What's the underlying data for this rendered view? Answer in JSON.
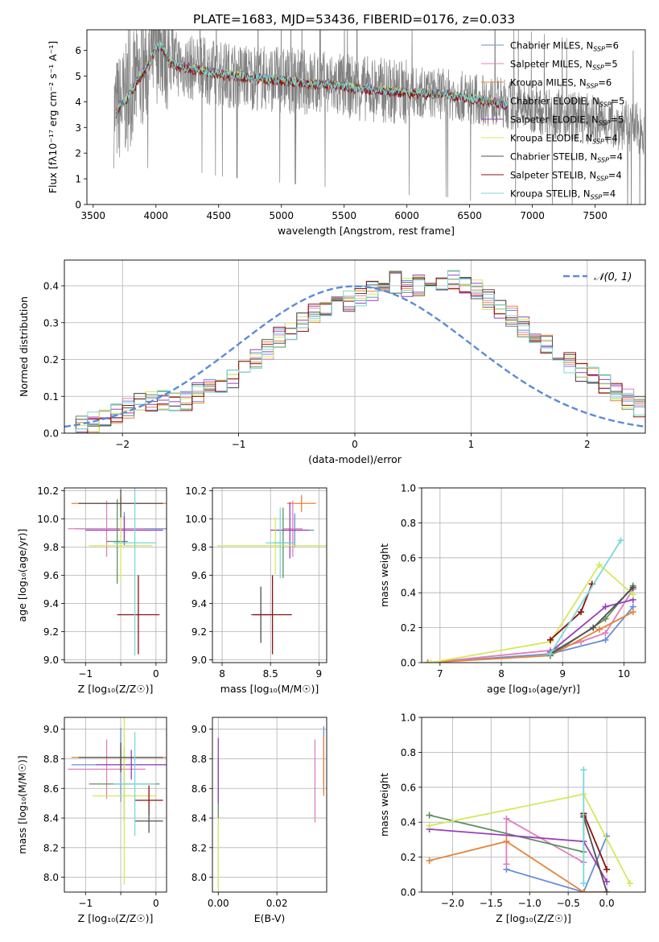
{
  "figure_title": "PLATE=1683, MJD=53436, FIBERID=0176, z=0.033",
  "colors": {
    "Chabrier MILES": "#6a8fd6",
    "Salpeter MILES": "#e07fbf",
    "Kroupa MILES": "#e6843a",
    "Chabrier ELODIE": "#5f8f5f",
    "Salpeter ELODIE": "#9a3fb8",
    "Kroupa ELODIE": "#d4e85a",
    "Chabrier STELIB": "#505050",
    "Salpeter STELIB": "#8b1010",
    "Kroupa STELIB": "#7ad8d8",
    "data": "#808080",
    "normal": "#5b8bd6"
  },
  "chart_data": [
    {
      "type": "line",
      "xlabel": "wavelength [Angstrom, rest frame]",
      "ylabel": "Flux [fλ10⁻¹⁷ erg cm⁻² s⁻¹ A⁻¹]",
      "xlim": [
        3450,
        7900
      ],
      "ylim": [
        0,
        6.8
      ],
      "xticks": [
        3500,
        4000,
        4500,
        5000,
        5500,
        6000,
        6500,
        7000,
        7500
      ],
      "yticks": [
        0,
        1,
        2,
        3,
        4,
        5,
        6
      ],
      "legend_loc": "upper right",
      "legend": [
        {
          "name": "Chabrier MILES",
          "label": "Chabrier MILES, N",
          "sub": "SSP",
          "tail": "=6"
        },
        {
          "name": "Salpeter MILES",
          "label": "Salpeter MILES, N",
          "sub": "SSP",
          "tail": "=5"
        },
        {
          "name": "Kroupa MILES",
          "label": "Kroupa MILES, N",
          "sub": "SSP",
          "tail": "=6"
        },
        {
          "name": "Chabrier ELODIE",
          "label": "Chabrier ELODIE, N",
          "sub": "SSP",
          "tail": "=5"
        },
        {
          "name": "Salpeter ELODIE",
          "label": "Salpeter ELODIE, N",
          "sub": "SSP",
          "tail": "=5"
        },
        {
          "name": "Kroupa ELODIE",
          "label": "Kroupa ELODIE, N",
          "sub": "SSP",
          "tail": "=4"
        },
        {
          "name": "Chabrier STELIB",
          "label": "Chabrier STELIB, N",
          "sub": "SSP",
          "tail": "=4"
        },
        {
          "name": "Salpeter STELIB",
          "label": "Salpeter STELIB, N",
          "sub": "SSP",
          "tail": "=4"
        },
        {
          "name": "Kroupa STELIB",
          "label": "Kroupa STELIB, N",
          "sub": "SSP",
          "tail": "=4"
        }
      ],
      "model_continuum": {
        "x": [
          3680,
          3750,
          3800,
          3900,
          3950,
          4000,
          4050,
          4100,
          4200,
          4300,
          4400,
          4500,
          4700,
          4900,
          5100,
          5300,
          5500,
          5700,
          5900,
          6100,
          6300,
          6500,
          6700,
          6800
        ],
        "y": [
          3.6,
          4.0,
          4.4,
          5.2,
          5.5,
          6.1,
          6.2,
          5.6,
          5.4,
          5.3,
          5.2,
          5.1,
          5.0,
          4.9,
          4.8,
          4.7,
          4.6,
          4.5,
          4.4,
          4.35,
          4.3,
          4.15,
          4.0,
          3.9
        ]
      }
    },
    {
      "type": "bar",
      "xlabel": "(data-model)/error",
      "ylabel": "Normed distribution",
      "xlim": [
        -2.5,
        2.5
      ],
      "ylim": [
        0,
        0.47
      ],
      "xticks": [
        -2,
        -1,
        0,
        1,
        2
      ],
      "yticks": [
        0.0,
        0.1,
        0.2,
        0.3,
        0.4
      ],
      "bin_edges_from": -2.5,
      "bin_width": 0.1,
      "reference_values": [
        0.02,
        0.02,
        0.03,
        0.04,
        0.05,
        0.07,
        0.08,
        0.09,
        0.09,
        0.08,
        0.09,
        0.11,
        0.13,
        0.14,
        0.15,
        0.17,
        0.2,
        0.23,
        0.26,
        0.28,
        0.3,
        0.33,
        0.34,
        0.35,
        0.36,
        0.37,
        0.39,
        0.4,
        0.41,
        0.4,
        0.4,
        0.4,
        0.41,
        0.42,
        0.4,
        0.39,
        0.36,
        0.34,
        0.32,
        0.29,
        0.26,
        0.24,
        0.21,
        0.19,
        0.17,
        0.15,
        0.13,
        0.11,
        0.09,
        0.07,
        0.06
      ],
      "legend_loc": "upper right",
      "normal_label": "𝒩(0, 1)"
    },
    {
      "type": "scatter",
      "xlabel": "Z [log₁₀(Z/Z☉)]",
      "ylabel": "age  [log₁₀(age/yr)]",
      "xlim": [
        -1.3,
        0.15
      ],
      "ylim": [
        8.98,
        10.22
      ],
      "xticks": [
        -1,
        -0.5,
        0
      ],
      "xticklabels": [
        "−1",
        "",
        "0"
      ],
      "yticks": [
        9.0,
        9.2,
        9.4,
        9.6,
        9.8,
        10.0,
        10.2
      ],
      "points": [
        {
          "series": "Chabrier MILES",
          "x": -0.45,
          "y": 9.93,
          "xerr": 0.7,
          "yerr": 0.12
        },
        {
          "series": "Salpeter MILES",
          "x": -0.7,
          "y": 9.93,
          "xerr": 0.55,
          "yerr": 0.2
        },
        {
          "series": "Kroupa MILES",
          "x": -0.5,
          "y": 10.11,
          "xerr": 0.7,
          "yerr": 0.05
        },
        {
          "series": "Chabrier ELODIE",
          "x": -0.55,
          "y": 9.84,
          "xerr": 0.15,
          "yerr": 0.3
        },
        {
          "series": "Salpeter ELODIE",
          "x": -0.45,
          "y": 9.92,
          "xerr": 0.55,
          "yerr": 0.1
        },
        {
          "series": "Kroupa ELODIE",
          "x": -0.5,
          "y": 9.81,
          "xerr": 0.45,
          "yerr": 0.25
        },
        {
          "series": "Chabrier STELIB",
          "x": -0.5,
          "y": 10.11,
          "xerr": 0.6,
          "yerr": 0.1
        },
        {
          "series": "Salpeter STELIB",
          "x": -0.25,
          "y": 9.32,
          "xerr": 0.3,
          "yerr": 0.28
        },
        {
          "series": "Kroupa STELIB",
          "x": -0.3,
          "y": 9.83,
          "xerr": 0.3,
          "yerr": 0.8
        }
      ]
    },
    {
      "type": "scatter",
      "xlabel": "mass [log₁₀(M/M☉)]",
      "ylabel": "",
      "xlim": [
        7.9,
        9.08
      ],
      "ylim": [
        8.98,
        10.22
      ],
      "xticks": [
        8.0,
        8.5,
        9.0
      ],
      "yticks": [
        9.0,
        9.2,
        9.4,
        9.6,
        9.8,
        10.0,
        10.2
      ],
      "points": [
        {
          "series": "Chabrier MILES",
          "x": 8.75,
          "y": 9.92,
          "xerr": 0.2,
          "yerr": 0.12
        },
        {
          "series": "Salpeter MILES",
          "x": 8.73,
          "y": 9.93,
          "xerr": 0.1,
          "yerr": 0.2
        },
        {
          "series": "Kroupa MILES",
          "x": 8.82,
          "y": 10.11,
          "xerr": 0.15,
          "yerr": 0.06
        },
        {
          "series": "Chabrier ELODIE",
          "x": 8.63,
          "y": 9.83,
          "xerr": 0.1,
          "yerr": 0.25
        },
        {
          "series": "Salpeter ELODIE",
          "x": 8.7,
          "y": 9.92,
          "xerr": 0.2,
          "yerr": 0.2
        },
        {
          "series": "Kroupa ELODIE",
          "x": 8.55,
          "y": 9.81,
          "xerr": 0.6,
          "yerr": 0.2
        },
        {
          "series": "Chabrier STELIB",
          "x": 8.4,
          "y": 9.32,
          "xerr": 0.1,
          "yerr": 0.2
        },
        {
          "series": "Salpeter STELIB",
          "x": 8.52,
          "y": 9.32,
          "xerr": 0.2,
          "yerr": 0.28
        },
        {
          "series": "Kroupa STELIB",
          "x": 8.6,
          "y": 9.83,
          "xerr": 0.15,
          "yerr": 0.25
        }
      ]
    },
    {
      "type": "line",
      "xlabel": "age  [log₁₀(age/yr)]",
      "ylabel": "mass weight",
      "xlim": [
        6.7,
        10.35
      ],
      "ylim": [
        0,
        1.0
      ],
      "xticks": [
        7,
        8,
        9,
        10
      ],
      "yticks": [
        0.0,
        0.2,
        0.4,
        0.6,
        0.8,
        1.0
      ],
      "series": [
        {
          "name": "Chabrier MILES",
          "x": [
            6.8,
            8.8,
            9.7,
            10.15
          ],
          "y": [
            0.0,
            0.05,
            0.13,
            0.32
          ]
        },
        {
          "name": "Salpeter MILES",
          "x": [
            6.8,
            8.8,
            9.3,
            9.7,
            10.15
          ],
          "y": [
            0.0,
            0.07,
            0.12,
            0.17,
            0.42
          ]
        },
        {
          "name": "Kroupa MILES",
          "x": [
            6.8,
            8.8,
            9.6,
            10.15
          ],
          "y": [
            0.0,
            0.04,
            0.19,
            0.29
          ]
        },
        {
          "name": "Chabrier ELODIE",
          "x": [
            8.8,
            9.7,
            10.15
          ],
          "y": [
            0.04,
            0.25,
            0.44
          ]
        },
        {
          "name": "Salpeter ELODIE",
          "x": [
            8.8,
            9.7,
            10.15
          ],
          "y": [
            0.06,
            0.32,
            0.36
          ]
        },
        {
          "name": "Kroupa ELODIE",
          "x": [
            6.85,
            8.8,
            9.6,
            10.15
          ],
          "y": [
            0.0,
            0.12,
            0.56,
            0.39
          ]
        },
        {
          "name": "Chabrier STELIB",
          "x": [
            8.8,
            9.5,
            10.15
          ],
          "y": [
            0.05,
            0.2,
            0.43
          ]
        },
        {
          "name": "Salpeter STELIB",
          "x": [
            8.8,
            9.3,
            9.48
          ],
          "y": [
            0.13,
            0.29,
            0.45
          ]
        },
        {
          "name": "Kroupa STELIB",
          "x": [
            8.8,
            9.95
          ],
          "y": [
            0.05,
            0.7
          ]
        }
      ]
    },
    {
      "type": "scatter",
      "xlabel": "Z [log₁₀(Z/Z☉)]",
      "ylabel": "mass [log₁₀(M/M☉)]",
      "xlim": [
        -1.3,
        0.15
      ],
      "ylim": [
        7.9,
        9.08
      ],
      "xticks": [
        -1,
        -0.5,
        0
      ],
      "xticklabels": [
        "−1",
        "",
        "0"
      ],
      "yticks": [
        8.0,
        8.2,
        8.4,
        8.6,
        8.8,
        9.0
      ],
      "points": [
        {
          "series": "Chabrier MILES",
          "x": -0.5,
          "y": 8.76,
          "xerr": 0.7,
          "yerr": 0.25
        },
        {
          "series": "Salpeter MILES",
          "x": -0.7,
          "y": 8.73,
          "xerr": 0.55,
          "yerr": 0.2
        },
        {
          "series": "Kroupa MILES",
          "x": -0.5,
          "y": 8.81,
          "xerr": 0.7,
          "yerr": 0.06
        },
        {
          "series": "Chabrier ELODIE",
          "x": -0.45,
          "y": 8.63,
          "xerr": 0.5,
          "yerr": 0.25
        },
        {
          "series": "Salpeter ELODIE",
          "x": -0.35,
          "y": 8.76,
          "xerr": 0.5,
          "yerr": 0.1
        },
        {
          "series": "Kroupa ELODIE",
          "x": -0.45,
          "y": 8.55,
          "xerr": 0.45,
          "yerr": 0.6
        },
        {
          "series": "Chabrier STELIB",
          "x": -0.5,
          "y": 8.81,
          "xerr": 0.6,
          "yerr": 0.1
        },
        {
          "series": "Salpeter STELIB",
          "x": -0.1,
          "y": 8.52,
          "xerr": 0.2,
          "yerr": 0.1
        },
        {
          "series": "Chabrier STELIB",
          "x": -0.1,
          "y": 8.38,
          "xerr": 0.2,
          "yerr": 0.08
        },
        {
          "series": "Kroupa STELIB",
          "x": -0.3,
          "y": 8.63,
          "xerr": 0.3,
          "yerr": 0.35
        }
      ]
    },
    {
      "type": "scatter",
      "xlabel": "E(B-V)",
      "ylabel": "",
      "xlim": [
        -0.002,
        0.037
      ],
      "ylim": [
        7.9,
        9.08
      ],
      "xticks": [
        0.0,
        0.02
      ],
      "xticklabels": [
        "0.00",
        "0.02"
      ],
      "yticks": [
        8.0,
        8.2,
        8.4,
        8.6,
        8.8,
        9.0
      ],
      "points": [
        {
          "series": "Chabrier ELODIE",
          "x": 0.0,
          "y": 8.6,
          "xerr": 0,
          "yerr": 0.2
        },
        {
          "series": "Salpeter ELODIE",
          "x": 0.0,
          "y": 8.72,
          "xerr": 0,
          "yerr": 0.22
        },
        {
          "series": "Kroupa ELODIE",
          "x": 0.0,
          "y": 8.15,
          "xerr": 0,
          "yerr": 0.25
        },
        {
          "series": "Salpeter MILES",
          "x": 0.033,
          "y": 8.65,
          "xerr": 0,
          "yerr": 0.28
        },
        {
          "series": "Chabrier MILES",
          "x": 0.036,
          "y": 8.8,
          "xerr": 0,
          "yerr": 0.22
        },
        {
          "series": "Kroupa MILES",
          "x": 0.036,
          "y": 8.75,
          "xerr": 0,
          "yerr": 0.2
        }
      ]
    },
    {
      "type": "line",
      "xlabel": "Z [log₁₀(Z/Z☉)]",
      "ylabel": "mass weight",
      "xlim": [
        -2.4,
        0.5
      ],
      "ylim": [
        0,
        1.0
      ],
      "xticks": [
        -2.0,
        -1.5,
        -1.0,
        -0.5,
        0.0
      ],
      "xticklabels": [
        "−2.0",
        "−1.5",
        "−1.0",
        "−0.5",
        "0.0"
      ],
      "yticks": [
        0.0,
        0.2,
        0.4,
        0.6,
        0.8,
        1.0
      ],
      "series": [
        {
          "name": "Chabrier MILES",
          "x": [
            -1.3,
            -0.3,
            0.0
          ],
          "y": [
            0.13,
            0.0,
            0.32
          ]
        },
        {
          "name": "Salpeter MILES",
          "x": [
            -1.3,
            -1.3,
            -0.3
          ],
          "y": [
            0.16,
            0.42,
            0.17
          ]
        },
        {
          "name": "Kroupa MILES",
          "x": [
            -2.3,
            -1.3,
            -0.3,
            0.0
          ],
          "y": [
            0.18,
            0.29,
            0.0,
            0.0
          ]
        },
        {
          "name": "Chabrier ELODIE",
          "x": [
            -2.3,
            -0.3,
            -0.3
          ],
          "y": [
            0.44,
            0.23,
            0.44
          ]
        },
        {
          "name": "Salpeter ELODIE",
          "x": [
            -2.3,
            -0.3,
            0.0
          ],
          "y": [
            0.36,
            0.29,
            0.06
          ]
        },
        {
          "name": "Kroupa ELODIE",
          "x": [
            -2.3,
            -0.3,
            0.3
          ],
          "y": [
            0.38,
            0.56,
            0.05
          ]
        },
        {
          "name": "Chabrier STELIB",
          "x": [
            -0.3,
            0.0
          ],
          "y": [
            0.43,
            0.0
          ]
        },
        {
          "name": "Salpeter STELIB",
          "x": [
            -0.3,
            0.0
          ],
          "y": [
            0.45,
            0.13
          ]
        },
        {
          "name": "Kroupa STELIB",
          "x": [
            -0.3,
            -0.3
          ],
          "y": [
            0.7,
            0.05
          ]
        }
      ]
    }
  ]
}
